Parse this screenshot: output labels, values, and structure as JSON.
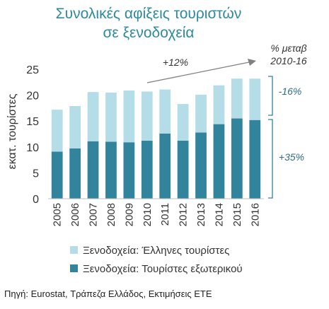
{
  "chart_data": {
    "type": "bar",
    "stacked": true,
    "title_lines": [
      "Συνολικές αφίξεις τουριστών",
      "σε ξενοδοχεία"
    ],
    "ylabel": "εκατ. τουρίστες",
    "ylim": [
      0,
      25
    ],
    "yticks": [
      0,
      5,
      10,
      15,
      20,
      25
    ],
    "categories": [
      "2005",
      "2006",
      "2007",
      "2008",
      "2009",
      "2010",
      "2011",
      "2012",
      "2013",
      "2014",
      "2015",
      "2016"
    ],
    "series": [
      {
        "name": "Ξενοδοχεία: Τουρίστες εξωτερικού",
        "color": "#31849b",
        "values": [
          9.1,
          9.7,
          11.1,
          11.0,
          10.9,
          11.2,
          12.6,
          11.2,
          12.8,
          14.4,
          15.5,
          15.2
        ]
      },
      {
        "name": "Ξενοδοχεία: Έλληνες τουρίστες",
        "color": "#b4dde8",
        "values": [
          8.1,
          8.2,
          9.5,
          9.5,
          10.0,
          9.5,
          8.5,
          7.1,
          7.3,
          7.5,
          7.7,
          8.0
        ]
      }
    ],
    "legend_order": [
      1,
      0
    ],
    "annotations": {
      "change_header": [
        "% μεταβ",
        "2010-16"
      ],
      "total_change": "+12%",
      "domestic_change": "-16%",
      "foreign_change": "+35%"
    }
  },
  "source": "Πηγή: Eurostat, Τράπεζα Ελλάδος, Εκτιμήσεις ΕΤΕ"
}
